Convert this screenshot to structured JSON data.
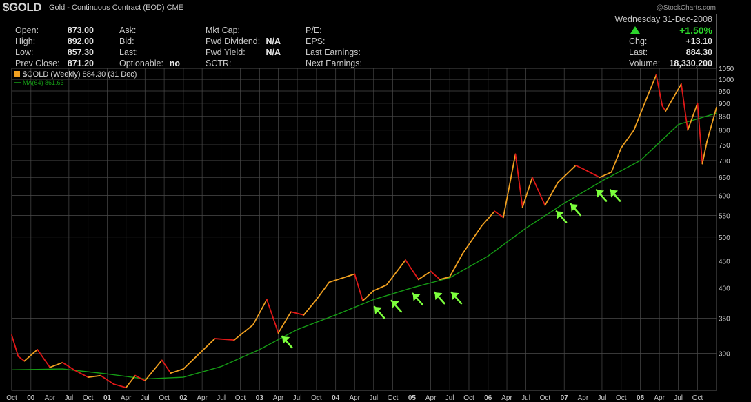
{
  "header": {
    "symbol": "$GOLD",
    "description": "Gold - Continuous Contract (EOD)",
    "exchange": "CME",
    "watermark": "@StockCharts.com"
  },
  "quote": {
    "open_label": "Open:",
    "open": "873.00",
    "high_label": "High:",
    "high": "892.00",
    "low_label": "Low:",
    "low": "857.30",
    "prev_close_label": "Prev Close:",
    "prev_close": "871.20",
    "ask_label": "Ask:",
    "bid_label": "Bid:",
    "last2_label": "Last:",
    "optionable_label": "Optionable:",
    "optionable": "no",
    "mkt_cap_label": "Mkt Cap:",
    "fwd_dividend_label": "Fwd Dividend:",
    "fwd_dividend": "N/A",
    "fwd_yield_label": "Fwd Yield:",
    "fwd_yield": "N/A",
    "sctr_label": "SCTR:",
    "pe_label": "P/E:",
    "eps_label": "EPS:",
    "last_earnings_label": "Last Earnings:",
    "next_earnings_label": "Next Earnings:",
    "date": "Wednesday  31-Dec-2008",
    "pct_change": "+1.50%",
    "chg_label": "Chg:",
    "chg": "+13.10",
    "last_label": "Last:",
    "last": "884.30",
    "volume_label": "Volume:",
    "volume": "18,330,200"
  },
  "colors": {
    "background": "#000000",
    "grid": "#4a4a4a",
    "price_up": "#f0a020",
    "price_down": "#e01818",
    "ma_line": "#159c15",
    "annotation_arrow": "#7cff3c",
    "positive": "#2bd42b"
  },
  "chart_data": {
    "type": "line",
    "legend": [
      {
        "name": "$GOLD (Weekly) 884.30 (31 Dec)",
        "color": "#f0a020"
      },
      {
        "name": "MA(64) 861.63",
        "color": "#159c15"
      }
    ],
    "y_scale": "log",
    "ylim": [
      255,
      1050
    ],
    "y_ticks": [
      300,
      350,
      400,
      450,
      500,
      550,
      600,
      650,
      700,
      750,
      800,
      850,
      900,
      950,
      1000,
      1050
    ],
    "x_range": [
      "1999-10-01",
      "2008-12-31"
    ],
    "x_ticks": [
      {
        "date": "1999-10-01",
        "label": "Oct"
      },
      {
        "date": "2000-01-01",
        "label": "00"
      },
      {
        "date": "2000-04-01",
        "label": "Apr"
      },
      {
        "date": "2000-07-01",
        "label": "Jul"
      },
      {
        "date": "2000-10-01",
        "label": "Oct"
      },
      {
        "date": "2001-01-01",
        "label": "01"
      },
      {
        "date": "2001-04-01",
        "label": "Apr"
      },
      {
        "date": "2001-07-01",
        "label": "Jul"
      },
      {
        "date": "2001-10-01",
        "label": "Oct"
      },
      {
        "date": "2002-01-01",
        "label": "02"
      },
      {
        "date": "2002-04-01",
        "label": "Apr"
      },
      {
        "date": "2002-07-01",
        "label": "Jul"
      },
      {
        "date": "2002-10-01",
        "label": "Oct"
      },
      {
        "date": "2003-01-01",
        "label": "03"
      },
      {
        "date": "2003-04-01",
        "label": "Apr"
      },
      {
        "date": "2003-07-01",
        "label": "Jul"
      },
      {
        "date": "2003-10-01",
        "label": "Oct"
      },
      {
        "date": "2004-01-01",
        "label": "04"
      },
      {
        "date": "2004-04-01",
        "label": "Apr"
      },
      {
        "date": "2004-07-01",
        "label": "Jul"
      },
      {
        "date": "2004-10-01",
        "label": "Oct"
      },
      {
        "date": "2005-01-01",
        "label": "05"
      },
      {
        "date": "2005-04-01",
        "label": "Apr"
      },
      {
        "date": "2005-07-01",
        "label": "Jul"
      },
      {
        "date": "2005-10-01",
        "label": "Oct"
      },
      {
        "date": "2006-01-01",
        "label": "06"
      },
      {
        "date": "2006-04-01",
        "label": "Apr"
      },
      {
        "date": "2006-07-01",
        "label": "Jul"
      },
      {
        "date": "2006-10-01",
        "label": "Oct"
      },
      {
        "date": "2007-01-01",
        "label": "07"
      },
      {
        "date": "2007-04-01",
        "label": "Apr"
      },
      {
        "date": "2007-07-01",
        "label": "Jul"
      },
      {
        "date": "2007-10-01",
        "label": "Oct"
      },
      {
        "date": "2008-01-01",
        "label": "08"
      },
      {
        "date": "2008-04-01",
        "label": "Apr"
      },
      {
        "date": "2008-07-01",
        "label": "Jul"
      },
      {
        "date": "2008-10-01",
        "label": "Oct"
      }
    ],
    "price": [
      {
        "date": "1999-10-01",
        "value": 325
      },
      {
        "date": "1999-11-01",
        "value": 296
      },
      {
        "date": "1999-12-01",
        "value": 290
      },
      {
        "date": "2000-02-01",
        "value": 305
      },
      {
        "date": "2000-04-01",
        "value": 282
      },
      {
        "date": "2000-06-01",
        "value": 288
      },
      {
        "date": "2000-08-01",
        "value": 278
      },
      {
        "date": "2000-10-01",
        "value": 270
      },
      {
        "date": "2000-12-01",
        "value": 272
      },
      {
        "date": "2001-02-01",
        "value": 262
      },
      {
        "date": "2001-04-01",
        "value": 258
      },
      {
        "date": "2001-05-15",
        "value": 272
      },
      {
        "date": "2001-07-01",
        "value": 266
      },
      {
        "date": "2001-09-20",
        "value": 291
      },
      {
        "date": "2001-11-01",
        "value": 275
      },
      {
        "date": "2002-01-01",
        "value": 280
      },
      {
        "date": "2002-03-01",
        "value": 295
      },
      {
        "date": "2002-06-01",
        "value": 320
      },
      {
        "date": "2002-09-01",
        "value": 318
      },
      {
        "date": "2002-12-01",
        "value": 340
      },
      {
        "date": "2003-02-05",
        "value": 380
      },
      {
        "date": "2003-04-01",
        "value": 328
      },
      {
        "date": "2003-06-01",
        "value": 360
      },
      {
        "date": "2003-08-01",
        "value": 355
      },
      {
        "date": "2003-10-01",
        "value": 380
      },
      {
        "date": "2003-12-01",
        "value": 410
      },
      {
        "date": "2004-04-01",
        "value": 425
      },
      {
        "date": "2004-05-10",
        "value": 378
      },
      {
        "date": "2004-07-01",
        "value": 395
      },
      {
        "date": "2004-09-01",
        "value": 405
      },
      {
        "date": "2004-12-01",
        "value": 452
      },
      {
        "date": "2005-02-01",
        "value": 415
      },
      {
        "date": "2005-04-01",
        "value": 430
      },
      {
        "date": "2005-05-15",
        "value": 415
      },
      {
        "date": "2005-07-01",
        "value": 420
      },
      {
        "date": "2005-09-01",
        "value": 465
      },
      {
        "date": "2005-12-01",
        "value": 525
      },
      {
        "date": "2006-02-01",
        "value": 560
      },
      {
        "date": "2006-03-15",
        "value": 545
      },
      {
        "date": "2006-05-12",
        "value": 720
      },
      {
        "date": "2006-06-15",
        "value": 570
      },
      {
        "date": "2006-08-01",
        "value": 650
      },
      {
        "date": "2006-10-01",
        "value": 575
      },
      {
        "date": "2006-12-01",
        "value": 635
      },
      {
        "date": "2007-02-25",
        "value": 685
      },
      {
        "date": "2007-04-01",
        "value": 675
      },
      {
        "date": "2007-06-20",
        "value": 650
      },
      {
        "date": "2007-08-15",
        "value": 665
      },
      {
        "date": "2007-10-01",
        "value": 740
      },
      {
        "date": "2007-12-01",
        "value": 800
      },
      {
        "date": "2008-01-31",
        "value": 920
      },
      {
        "date": "2008-03-17",
        "value": 1020
      },
      {
        "date": "2008-04-15",
        "value": 890
      },
      {
        "date": "2008-05-01",
        "value": 870
      },
      {
        "date": "2008-07-15",
        "value": 980
      },
      {
        "date": "2008-08-15",
        "value": 800
      },
      {
        "date": "2008-10-01",
        "value": 900
      },
      {
        "date": "2008-10-24",
        "value": 690
      },
      {
        "date": "2008-11-15",
        "value": 760
      },
      {
        "date": "2008-12-31",
        "value": 884.3
      }
    ],
    "moving_average": [
      {
        "date": "1999-10-01",
        "value": 279
      },
      {
        "date": "2000-06-01",
        "value": 280
      },
      {
        "date": "2001-01-01",
        "value": 274
      },
      {
        "date": "2001-07-01",
        "value": 268
      },
      {
        "date": "2002-01-01",
        "value": 270
      },
      {
        "date": "2002-07-01",
        "value": 283
      },
      {
        "date": "2003-01-01",
        "value": 305
      },
      {
        "date": "2003-07-01",
        "value": 333
      },
      {
        "date": "2004-01-01",
        "value": 355
      },
      {
        "date": "2004-07-01",
        "value": 380
      },
      {
        "date": "2005-01-01",
        "value": 400
      },
      {
        "date": "2005-07-01",
        "value": 418
      },
      {
        "date": "2006-01-01",
        "value": 460
      },
      {
        "date": "2006-07-01",
        "value": 520
      },
      {
        "date": "2007-01-01",
        "value": 580
      },
      {
        "date": "2007-07-01",
        "value": 640
      },
      {
        "date": "2008-01-01",
        "value": 700
      },
      {
        "date": "2008-07-01",
        "value": 820
      },
      {
        "date": "2008-12-31",
        "value": 861.63
      }
    ],
    "annotations": [
      {
        "type": "arrow",
        "date": "2003-04-20",
        "value": 323
      },
      {
        "type": "arrow",
        "date": "2004-07-05",
        "value": 368
      },
      {
        "type": "arrow",
        "date": "2004-09-25",
        "value": 378
      },
      {
        "type": "arrow",
        "date": "2005-01-05",
        "value": 390
      },
      {
        "type": "arrow",
        "date": "2005-04-20",
        "value": 392
      },
      {
        "type": "arrow",
        "date": "2005-07-10",
        "value": 392
      },
      {
        "type": "arrow",
        "date": "2006-11-25",
        "value": 560
      },
      {
        "type": "arrow",
        "date": "2007-02-01",
        "value": 578
      },
      {
        "type": "arrow",
        "date": "2007-06-05",
        "value": 615
      },
      {
        "type": "arrow",
        "date": "2007-08-10",
        "value": 615
      }
    ]
  }
}
